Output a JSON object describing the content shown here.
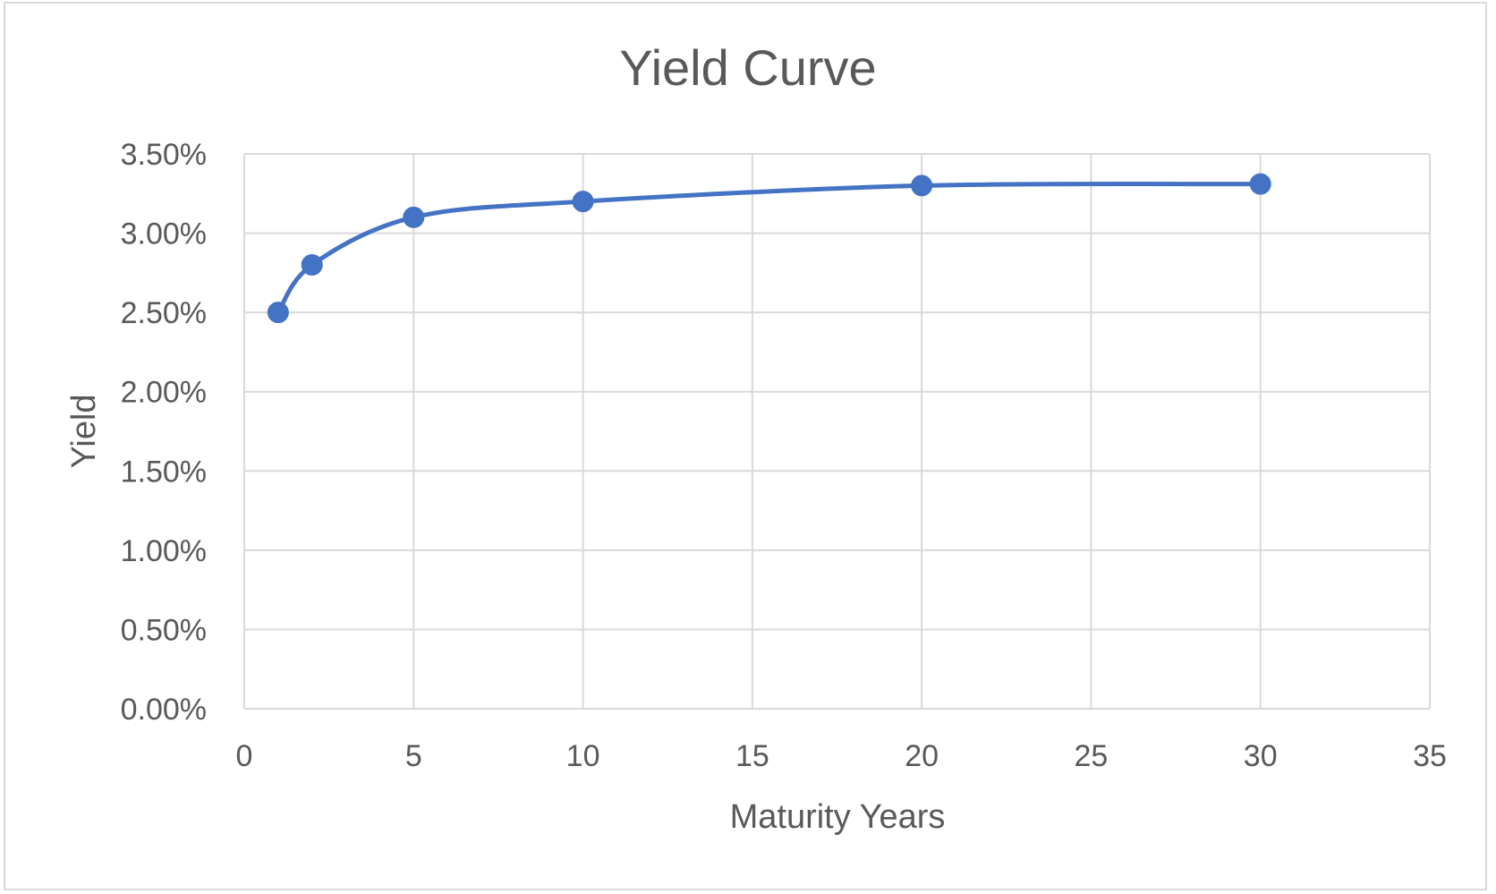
{
  "chart_data": {
    "type": "scatter",
    "title": "Yield Curve",
    "xlabel": "Maturity Years",
    "ylabel": "Yield",
    "xlim": [
      0,
      35
    ],
    "ylim": [
      0,
      0.035
    ],
    "x_ticks": [
      0,
      5,
      10,
      15,
      20,
      25,
      30,
      35
    ],
    "y_ticks": [
      0,
      0.005,
      0.01,
      0.015,
      0.02,
      0.025,
      0.03,
      0.035
    ],
    "x_tick_labels": [
      "0",
      "5",
      "10",
      "15",
      "20",
      "25",
      "30",
      "35"
    ],
    "y_tick_labels": [
      "0.00%",
      "0.50%",
      "1.00%",
      "1.50%",
      "2.00%",
      "2.50%",
      "3.00%",
      "3.50%"
    ],
    "grid": true,
    "smooth": true,
    "series": [
      {
        "x": [
          1,
          2,
          5,
          10,
          20,
          30
        ],
        "y": [
          0.025,
          0.028,
          0.031,
          0.032,
          0.033,
          0.0331
        ],
        "color": "#4472c4"
      }
    ]
  }
}
